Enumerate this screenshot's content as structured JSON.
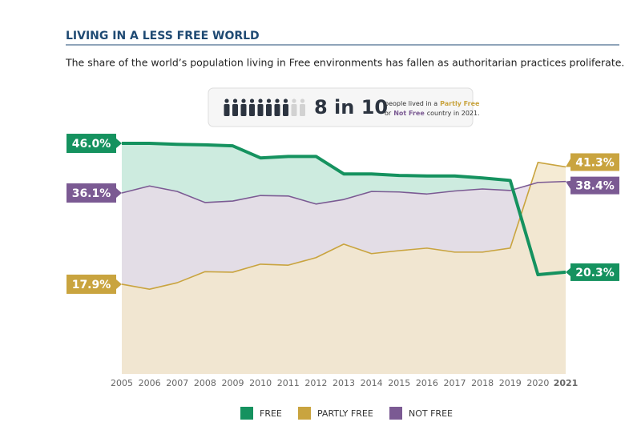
{
  "title": "LIVING IN A LESS FREE WORLD",
  "subtitle": "The share of the world’s population living in Free environments has fallen as authoritarian practices proliferate.",
  "callout": {
    "headline": "8 in 10",
    "line1": "people lived in a",
    "line1_highlight": "Partly Free",
    "line2_prefix": "or",
    "line2_highlight": "Not Free",
    "line2_suffix": "country in 2021."
  },
  "chart_data": {
    "type": "area",
    "categories": [
      "2005",
      "2006",
      "2007",
      "2008",
      "2009",
      "2010",
      "2011",
      "2012",
      "2013",
      "2014",
      "2015",
      "2016",
      "2017",
      "2018",
      "2019",
      "2020",
      "2021"
    ],
    "ylim": [
      0,
      50
    ],
    "legend": "bottom",
    "series": [
      {
        "name": "FREE",
        "color": "#15925f",
        "fill": "#c4e7d9",
        "values": [
          46.0,
          46.0,
          45.8,
          45.7,
          45.5,
          43.1,
          43.4,
          43.4,
          39.9,
          39.9,
          39.6,
          39.5,
          39.5,
          39.1,
          38.6,
          19.8,
          20.3
        ],
        "value_labels": [
          "46.0%",
          null,
          null,
          null,
          null,
          null,
          null,
          null,
          null,
          null,
          null,
          null,
          null,
          null,
          null,
          null,
          "20.3%"
        ]
      },
      {
        "name": "PARTLY FREE",
        "color": "#c9a43f",
        "fill": "#f3e8cd",
        "values": [
          17.9,
          16.9,
          18.2,
          20.4,
          20.3,
          21.9,
          21.7,
          23.2,
          25.9,
          24.0,
          24.6,
          25.1,
          24.3,
          24.3,
          25.1,
          42.2,
          41.3
        ],
        "value_labels": [
          "17.9%",
          null,
          null,
          null,
          null,
          null,
          null,
          null,
          null,
          null,
          null,
          null,
          null,
          null,
          null,
          null,
          "41.3%"
        ]
      },
      {
        "name": "NOT FREE",
        "color": "#7b5a93",
        "fill": "#e6dbe7",
        "values": [
          36.1,
          37.5,
          36.4,
          34.2,
          34.5,
          35.6,
          35.5,
          33.9,
          34.8,
          36.4,
          36.3,
          35.9,
          36.5,
          36.9,
          36.6,
          38.2,
          38.4
        ],
        "value_labels": [
          "36.1%",
          null,
          null,
          null,
          null,
          null,
          null,
          null,
          null,
          null,
          null,
          null,
          null,
          null,
          null,
          null,
          "38.4%"
        ]
      }
    ]
  }
}
